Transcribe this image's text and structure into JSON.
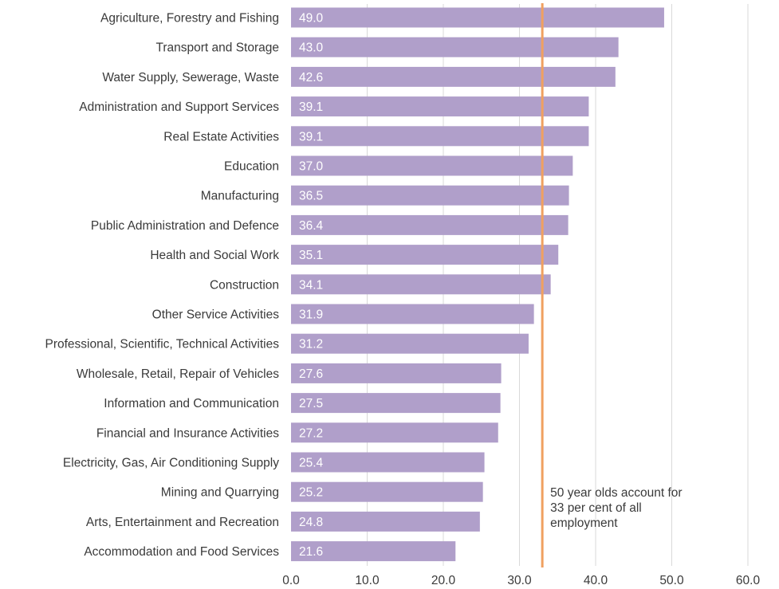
{
  "chart_data": {
    "type": "bar",
    "orientation": "horizontal",
    "categories": [
      "Agriculture, Forestry and Fishing",
      "Transport and Storage",
      "Water Supply, Sewerage, Waste",
      "Administration and Support Services",
      "Real Estate Activities",
      "Education",
      "Manufacturing",
      "Public Administration and Defence",
      "Health and Social Work",
      "Construction",
      "Other Service Activities",
      "Professional, Scientific, Technical Activities",
      "Wholesale, Retail, Repair of Vehicles",
      "Information and Communication",
      "Financial and Insurance Activities",
      "Electricity, Gas, Air Conditioning Supply",
      "Mining and Quarrying",
      "Arts, Entertainment and Recreation",
      "Accommodation and Food Services"
    ],
    "values": [
      49.0,
      43.0,
      42.6,
      39.1,
      39.1,
      37.0,
      36.5,
      36.4,
      35.1,
      34.1,
      31.9,
      31.2,
      27.6,
      27.5,
      27.2,
      25.4,
      25.2,
      24.8,
      21.6
    ],
    "value_labels": [
      "49.0",
      "43.0",
      "42.6",
      "39.1",
      "39.1",
      "37.0",
      "36.5",
      "36.4",
      "35.1",
      "34.1",
      "31.9",
      "31.2",
      "27.6",
      "27.5",
      "27.2",
      "25.4",
      "25.2",
      "24.8",
      "21.6"
    ],
    "xlim": [
      0,
      60
    ],
    "ticks": [
      0,
      10,
      20,
      30,
      40,
      50,
      60
    ],
    "tick_labels": [
      "0.0",
      "10.0",
      "20.0",
      "30.0",
      "40.0",
      "50.0",
      "60.0"
    ],
    "grid": true,
    "title": "",
    "xlabel": "",
    "ylabel": "",
    "reference_line": {
      "value": 33,
      "annotation": [
        "50 year olds account for",
        "33 per cent of all",
        "employment"
      ]
    },
    "colors": {
      "bar": "#b09fca",
      "reference_line": "#f0a060",
      "grid": "#d9d9d9"
    }
  }
}
